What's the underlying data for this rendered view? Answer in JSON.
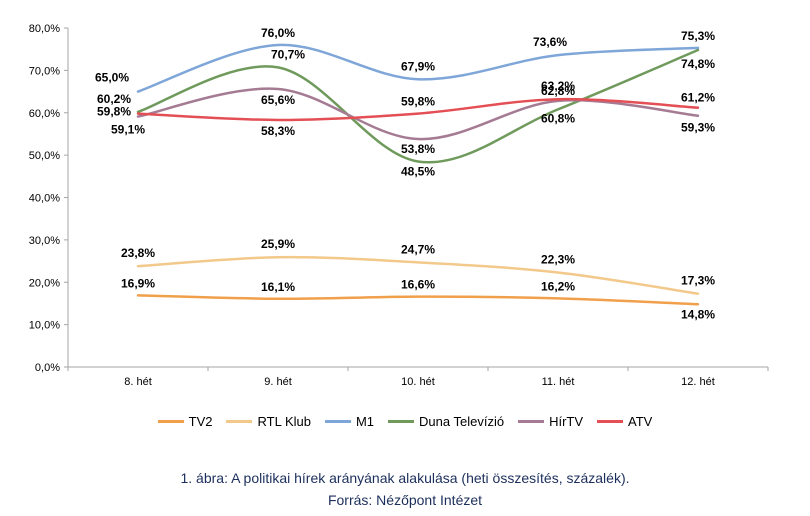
{
  "chart_data": {
    "type": "line",
    "categories": [
      "8. hét",
      "9. hét",
      "10. hét",
      "11. hét",
      "12. hét"
    ],
    "ylim": [
      0,
      80
    ],
    "yticks": [
      "0,0%",
      "10,0%",
      "20,0%",
      "30,0%",
      "40,0%",
      "50,0%",
      "60,0%",
      "70,0%",
      "80,0%"
    ],
    "series": [
      {
        "name": "TV2",
        "color": "#f0a04b",
        "values": [
          16.9,
          16.1,
          16.6,
          16.2,
          14.8
        ],
        "labels": [
          "16,9%",
          "16,1%",
          "16,6%",
          "16,2%",
          "14,8%"
        ]
      },
      {
        "name": "RTL Klub",
        "color": "#f2c98a",
        "values": [
          23.8,
          25.9,
          24.7,
          22.3,
          17.3
        ],
        "labels": [
          "23,8%",
          "25,9%",
          "24,7%",
          "22,3%",
          "17,3%"
        ]
      },
      {
        "name": "M1",
        "color": "#7ea6d8",
        "values": [
          65.0,
          76.0,
          67.9,
          73.6,
          75.3
        ],
        "labels": [
          "65,0%",
          "76,0%",
          "67,9%",
          "73,6%",
          "75,3%"
        ]
      },
      {
        "name": "Duna Televízió",
        "color": "#6f9a5c",
        "values": [
          60.2,
          70.7,
          48.5,
          60.8,
          74.8
        ],
        "labels": [
          "60,2%",
          "70,7%",
          "48,5%",
          "60,8%",
          "74,8%"
        ]
      },
      {
        "name": "HírTV",
        "color": "#a57b94",
        "values": [
          59.1,
          65.6,
          53.8,
          62.8,
          59.3
        ],
        "labels": [
          "59,1%",
          "65,6%",
          "53,8%",
          "62,8%",
          "59,3%"
        ]
      },
      {
        "name": "ATV",
        "color": "#e34f55",
        "values": [
          59.8,
          58.3,
          59.8,
          63.2,
          61.2
        ],
        "labels": [
          "59,8%",
          "58,3%",
          "59,8%",
          "63,2%",
          "61,2%"
        ]
      }
    ]
  },
  "caption": {
    "line1": "1. ábra: A politikai hírek arányának alakulása (heti összesítés, százalék).",
    "line2": "Forrás: Nézőpont Intézet"
  }
}
